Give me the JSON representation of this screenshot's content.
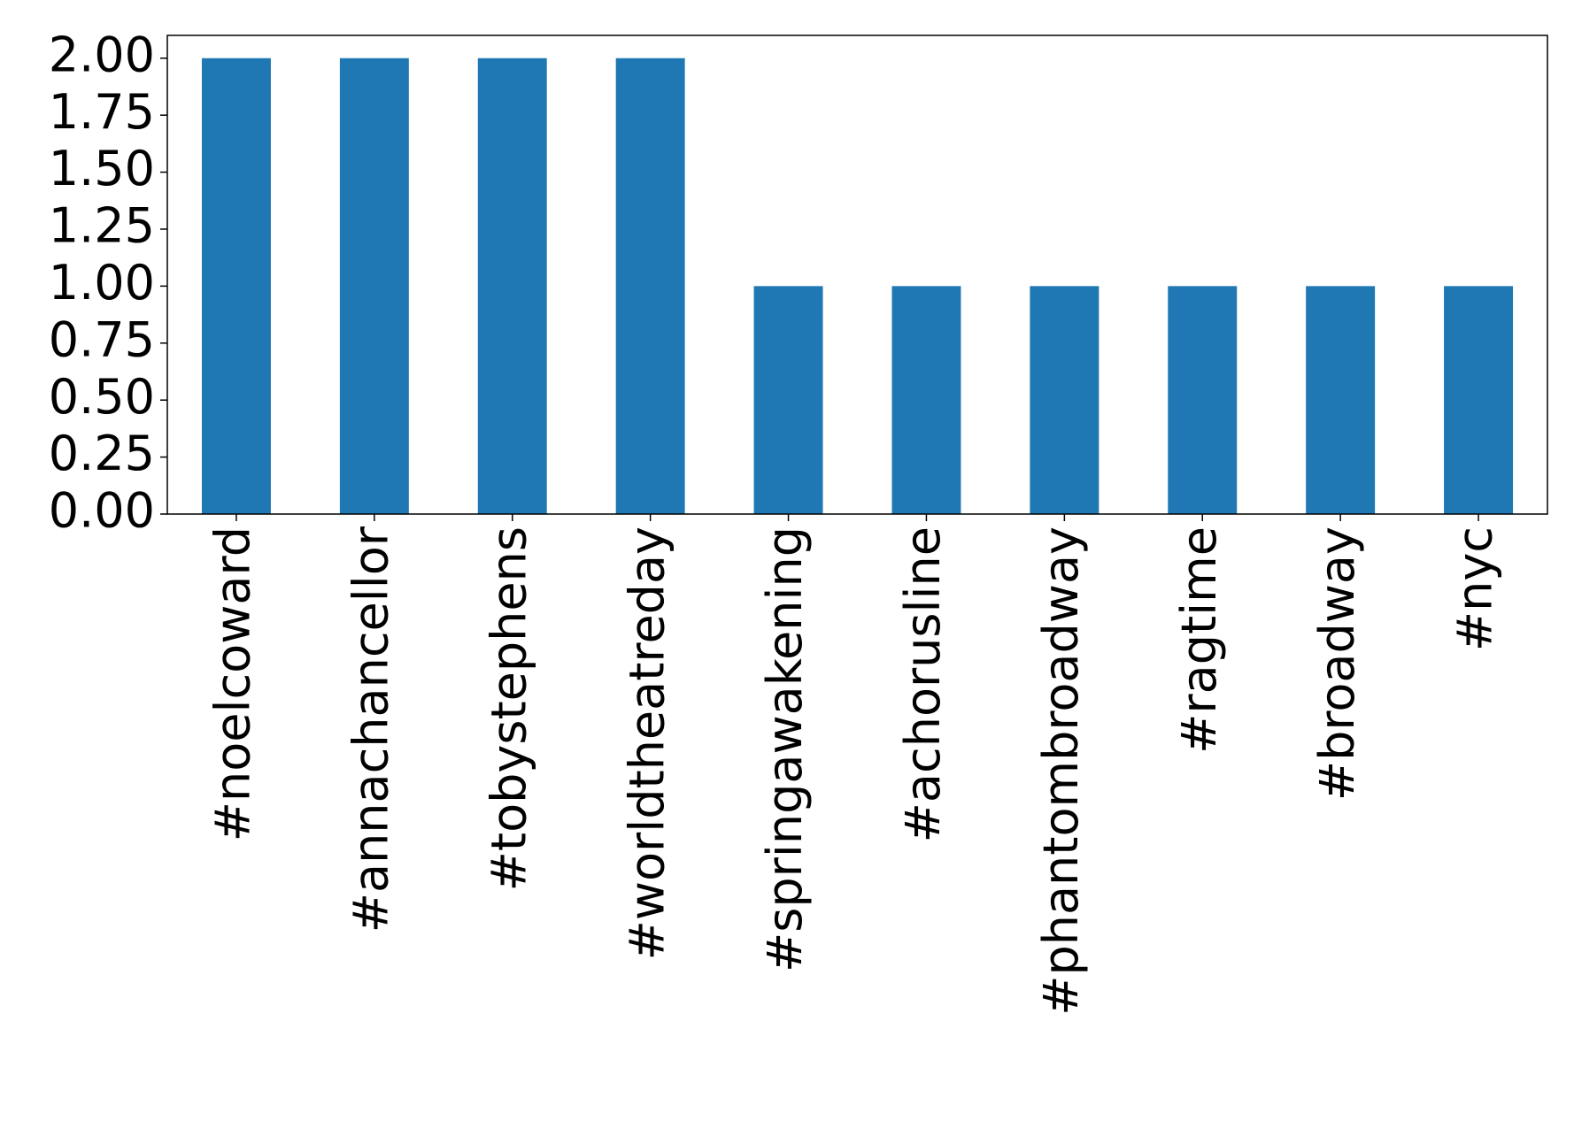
{
  "chart_data": {
    "type": "bar",
    "categories": [
      "#noelcoward",
      "#annachancellor",
      "#tobystephens",
      "#worldtheatreday",
      "#springawakening",
      "#achorusline",
      "#phantombroadway",
      "#ragtime",
      "#broadway",
      "#nyc"
    ],
    "values": [
      2,
      2,
      2,
      2,
      1,
      1,
      1,
      1,
      1,
      1
    ],
    "color": "#1f77b4",
    "ylim": [
      0,
      2.1
    ],
    "yticks": [
      {
        "value": 0,
        "label": "0.00"
      },
      {
        "value": 0.25,
        "label": "0.25"
      },
      {
        "value": 0.5,
        "label": "0.50"
      },
      {
        "value": 0.75,
        "label": "0.75"
      },
      {
        "value": 1,
        "label": "1.00"
      },
      {
        "value": 1.25,
        "label": "1.25"
      },
      {
        "value": 1.5,
        "label": "1.50"
      },
      {
        "value": 1.75,
        "label": "1.75"
      },
      {
        "value": 2,
        "label": "2.00"
      }
    ],
    "grid": false
  }
}
